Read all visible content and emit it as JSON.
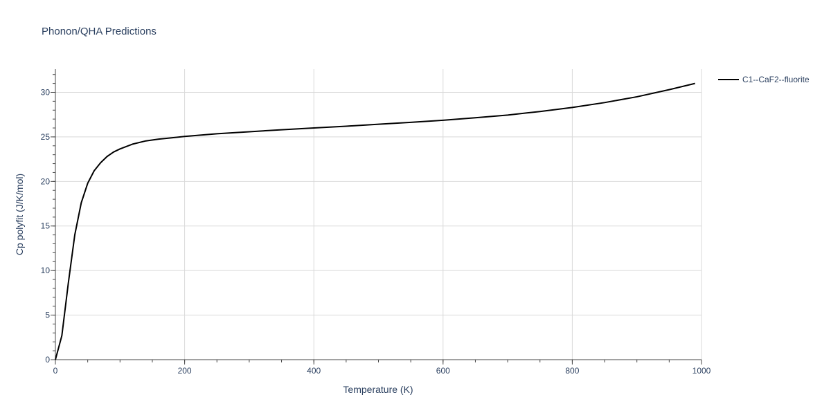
{
  "chart_data": {
    "type": "line",
    "title": "Phonon/QHA Predictions",
    "xlabel": "Temperature (K)",
    "ylabel": "Cp polyfit (J/K/mol)",
    "xlim": [
      0,
      1000
    ],
    "ylim": [
      0,
      32.6
    ],
    "x_ticks": [
      0,
      200,
      400,
      600,
      800,
      1000
    ],
    "y_ticks": [
      0,
      5,
      10,
      15,
      20,
      25,
      30
    ],
    "grid": true,
    "legend_position": "top-right",
    "series": [
      {
        "name": "C1--CaF2--fluorite",
        "color": "#000000",
        "x": [
          0,
          10,
          20,
          30,
          40,
          50,
          60,
          70,
          80,
          90,
          100,
          120,
          140,
          160,
          180,
          200,
          250,
          300,
          350,
          400,
          450,
          500,
          550,
          600,
          650,
          700,
          750,
          800,
          850,
          900,
          950,
          990
        ],
        "y": [
          0,
          2.7,
          8.6,
          14.0,
          17.6,
          19.8,
          21.2,
          22.1,
          22.8,
          23.3,
          23.65,
          24.2,
          24.55,
          24.75,
          24.9,
          25.05,
          25.35,
          25.58,
          25.8,
          26.0,
          26.2,
          26.42,
          26.63,
          26.87,
          27.15,
          27.45,
          27.85,
          28.3,
          28.85,
          29.5,
          30.3,
          31.0
        ]
      }
    ]
  }
}
